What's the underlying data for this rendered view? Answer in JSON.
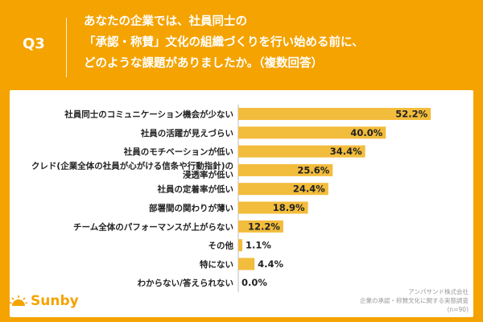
{
  "header": {
    "q_label": "Q3",
    "question_lines": [
      "あなたの企業では、社員同士の",
      "「承認・称賛」文化の組織づくりを行い始める前に、",
      "どのような課題がありましたか。（複数回答）"
    ]
  },
  "source": {
    "line1": "アンパサンド株式会社",
    "line2": "企業の承認・称賛文化に関する実態調査",
    "line3": "(n=90)"
  },
  "logo": {
    "text": "Sunby"
  },
  "colors": {
    "background": "#F4A300",
    "bar": "#F2BC3C",
    "panel": "#FFFFFF"
  },
  "chart_data": {
    "type": "bar",
    "orientation": "horizontal",
    "categories": [
      [
        "社員同士のコミュニケーション機会が少ない"
      ],
      [
        "社員の活躍が見えづらい"
      ],
      [
        "社員のモチベーションが低い"
      ],
      [
        "クレド(企業全体の社員が心がける信条や行動指針)の",
        "浸透率が低い"
      ],
      [
        "社員の定着率が低い"
      ],
      [
        "部署間の関わりが薄い"
      ],
      [
        "チーム全体のパフォーマンスが上がらない"
      ],
      [
        "その他"
      ],
      [
        "特にない"
      ],
      [
        "わからない/答えられない"
      ]
    ],
    "values": [
      52.2,
      40.0,
      34.4,
      25.6,
      24.4,
      18.9,
      12.2,
      1.1,
      4.4,
      0.0
    ],
    "value_labels": [
      "52.2%",
      "40.0%",
      "34.4%",
      "25.6%",
      "24.4%",
      "18.9%",
      "12.2%",
      "1.1%",
      "4.4%",
      "0.0%"
    ],
    "xlim": [
      0,
      55
    ],
    "grid": false,
    "legend": "none"
  }
}
